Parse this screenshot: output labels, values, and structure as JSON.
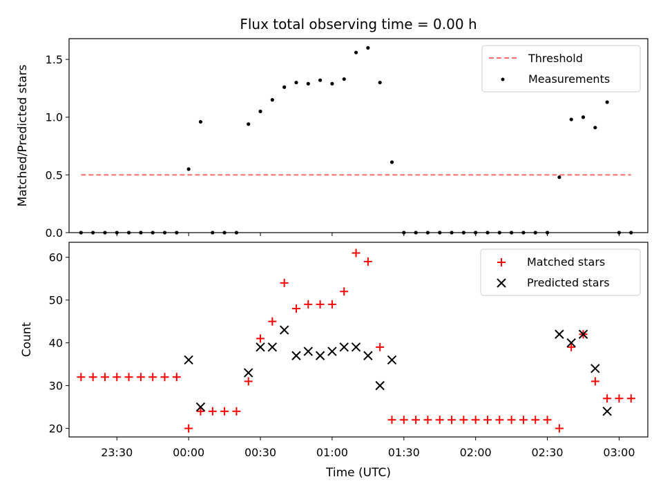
{
  "title": "Flux total observing time = 0.00 h",
  "chart_data": [
    {
      "type": "scatter",
      "ylabel": "Matched/Predicted stars",
      "ylim": [
        0,
        1.68
      ],
      "yticks": [
        0.0,
        0.5,
        1.0,
        1.5
      ],
      "ytick_labels": [
        "0.0",
        "0.5",
        "1.0",
        "1.5"
      ],
      "legend_position": "top-right",
      "legend": [
        "Threshold",
        "Measurements"
      ],
      "threshold": {
        "name": "Threshold",
        "y": 0.5,
        "x_start": "23:15",
        "x_end": "03:05",
        "color": "#ff6b6b"
      },
      "series": [
        {
          "name": "Measurements",
          "color": "#000000",
          "points": [
            [
              "23:15",
              0
            ],
            [
              "23:20",
              0
            ],
            [
              "23:25",
              0
            ],
            [
              "23:30",
              0
            ],
            [
              "23:35",
              0
            ],
            [
              "23:40",
              0
            ],
            [
              "23:45",
              0
            ],
            [
              "23:50",
              0
            ],
            [
              "23:55",
              0
            ],
            [
              "00:00",
              0.55
            ],
            [
              "00:05",
              0.96
            ],
            [
              "00:10",
              0
            ],
            [
              "00:15",
              0
            ],
            [
              "00:20",
              0
            ],
            [
              "00:25",
              0.94
            ],
            [
              "00:30",
              1.05
            ],
            [
              "00:35",
              1.15
            ],
            [
              "00:40",
              1.26
            ],
            [
              "00:45",
              1.3
            ],
            [
              "00:50",
              1.29
            ],
            [
              "00:55",
              1.32
            ],
            [
              "01:00",
              1.29
            ],
            [
              "01:05",
              1.33
            ],
            [
              "01:10",
              1.56
            ],
            [
              "01:15",
              1.6
            ],
            [
              "01:20",
              1.3
            ],
            [
              "01:25",
              0.61
            ],
            [
              "01:30",
              0
            ],
            [
              "01:35",
              0
            ],
            [
              "01:40",
              0
            ],
            [
              "01:45",
              0
            ],
            [
              "01:50",
              0
            ],
            [
              "01:55",
              0
            ],
            [
              "02:00",
              0
            ],
            [
              "02:05",
              0
            ],
            [
              "02:10",
              0
            ],
            [
              "02:15",
              0
            ],
            [
              "02:20",
              0
            ],
            [
              "02:25",
              0
            ],
            [
              "02:30",
              0
            ],
            [
              "02:35",
              0.48
            ],
            [
              "02:40",
              0.98
            ],
            [
              "02:45",
              1.0
            ],
            [
              "02:50",
              0.91
            ],
            [
              "02:55",
              1.13
            ],
            [
              "03:00",
              0
            ],
            [
              "03:05",
              0
            ]
          ]
        }
      ]
    },
    {
      "type": "scatter",
      "xlabel": "Time (UTC)",
      "ylabel": "Count",
      "ylim": [
        18,
        63.5
      ],
      "yticks": [
        20,
        30,
        40,
        50,
        60
      ],
      "ytick_labels": [
        "20",
        "30",
        "40",
        "50",
        "60"
      ],
      "xticks": [
        "23:30",
        "00:00",
        "00:30",
        "01:00",
        "01:30",
        "02:00",
        "02:30",
        "03:00"
      ],
      "xlim": [
        "23:10",
        "03:12"
      ],
      "legend_position": "top-right",
      "legend": [
        "Matched stars",
        "Predicted stars"
      ],
      "series": [
        {
          "name": "Matched stars",
          "marker": "plus",
          "color": "#ff0000",
          "points": [
            [
              "23:15",
              32
            ],
            [
              "23:20",
              32
            ],
            [
              "23:25",
              32
            ],
            [
              "23:30",
              32
            ],
            [
              "23:35",
              32
            ],
            [
              "23:40",
              32
            ],
            [
              "23:45",
              32
            ],
            [
              "23:50",
              32
            ],
            [
              "23:55",
              32
            ],
            [
              "00:00",
              20
            ],
            [
              "00:05",
              24
            ],
            [
              "00:10",
              24
            ],
            [
              "00:15",
              24
            ],
            [
              "00:20",
              24
            ],
            [
              "00:25",
              31
            ],
            [
              "00:30",
              41
            ],
            [
              "00:35",
              45
            ],
            [
              "00:40",
              54
            ],
            [
              "00:45",
              48
            ],
            [
              "00:50",
              49
            ],
            [
              "00:55",
              49
            ],
            [
              "01:00",
              49
            ],
            [
              "01:05",
              52
            ],
            [
              "01:10",
              61
            ],
            [
              "01:15",
              59
            ],
            [
              "01:20",
              39
            ],
            [
              "01:25",
              22
            ],
            [
              "01:30",
              22
            ],
            [
              "01:35",
              22
            ],
            [
              "01:40",
              22
            ],
            [
              "01:45",
              22
            ],
            [
              "01:50",
              22
            ],
            [
              "01:55",
              22
            ],
            [
              "02:00",
              22
            ],
            [
              "02:05",
              22
            ],
            [
              "02:10",
              22
            ],
            [
              "02:15",
              22
            ],
            [
              "02:20",
              22
            ],
            [
              "02:25",
              22
            ],
            [
              "02:30",
              22
            ],
            [
              "02:35",
              20
            ],
            [
              "02:40",
              39
            ],
            [
              "02:45",
              42
            ],
            [
              "02:50",
              31
            ],
            [
              "02:55",
              27
            ],
            [
              "03:00",
              27
            ],
            [
              "03:05",
              27
            ]
          ]
        },
        {
          "name": "Predicted stars",
          "marker": "x",
          "color": "#000000",
          "points": [
            [
              "00:00",
              36
            ],
            [
              "00:05",
              25
            ],
            [
              "00:25",
              33
            ],
            [
              "00:30",
              39
            ],
            [
              "00:35",
              39
            ],
            [
              "00:40",
              43
            ],
            [
              "00:45",
              37
            ],
            [
              "00:50",
              38
            ],
            [
              "00:55",
              37
            ],
            [
              "01:00",
              38
            ],
            [
              "01:05",
              39
            ],
            [
              "01:10",
              39
            ],
            [
              "01:15",
              37
            ],
            [
              "01:20",
              30
            ],
            [
              "01:25",
              36
            ],
            [
              "02:35",
              42
            ],
            [
              "02:40",
              40
            ],
            [
              "02:45",
              42
            ],
            [
              "02:50",
              34
            ],
            [
              "02:55",
              24
            ]
          ]
        }
      ]
    }
  ]
}
